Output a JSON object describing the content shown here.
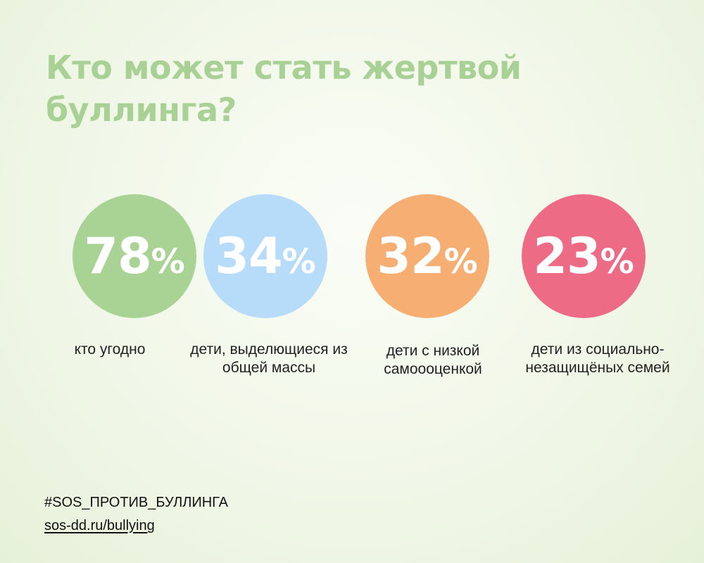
{
  "header": {
    "title": "Кто может стать жертвой буллинга?"
  },
  "chart_data": {
    "type": "table",
    "unit": "%",
    "items": [
      {
        "value": "78",
        "label": "кто угодно",
        "color": "#a9d394"
      },
      {
        "value": "34",
        "label": "дети, выделющиеся из общей массы",
        "color": "#b7dcfa"
      },
      {
        "value": "32",
        "label": "дети с низкой самоооценкой",
        "color": "#f7ae72"
      },
      {
        "value": "23",
        "label": "дети из социально-незащищёных семей",
        "color": "#ee6b86"
      }
    ]
  },
  "footer": {
    "hashtag": "#SOS_ПРОТИВ_БУЛЛИНГА",
    "link": "sos-dd.ru/bullying"
  }
}
